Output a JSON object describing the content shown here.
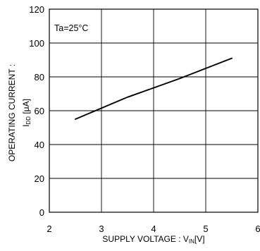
{
  "chart_data": {
    "type": "line",
    "annotation": "Ta=25°C",
    "xlabel": {
      "main": "SUPPLY VOLTAGE : V",
      "sub": "IN",
      "unit": "[V]"
    },
    "ylabel": {
      "line1": "OPERATING CURRENT :",
      "line2_main": "I",
      "line2_sub": "DD",
      "line2_unit": " [μA]"
    },
    "xlim": [
      2,
      6
    ],
    "ylim": [
      0,
      120
    ],
    "x_ticks": [
      2,
      3,
      4,
      5,
      6
    ],
    "y_ticks": [
      0,
      20,
      40,
      60,
      80,
      100,
      120
    ],
    "grid": true,
    "series": [
      {
        "x": [
          2.5,
          3.0,
          3.5,
          4.0,
          4.5,
          5.0,
          5.5
        ],
        "y": [
          55,
          61.5,
          68,
          73.5,
          79,
          85,
          91
        ]
      }
    ],
    "colors": {
      "line": "#000000",
      "grid": "#000000",
      "frame": "#000000"
    }
  }
}
